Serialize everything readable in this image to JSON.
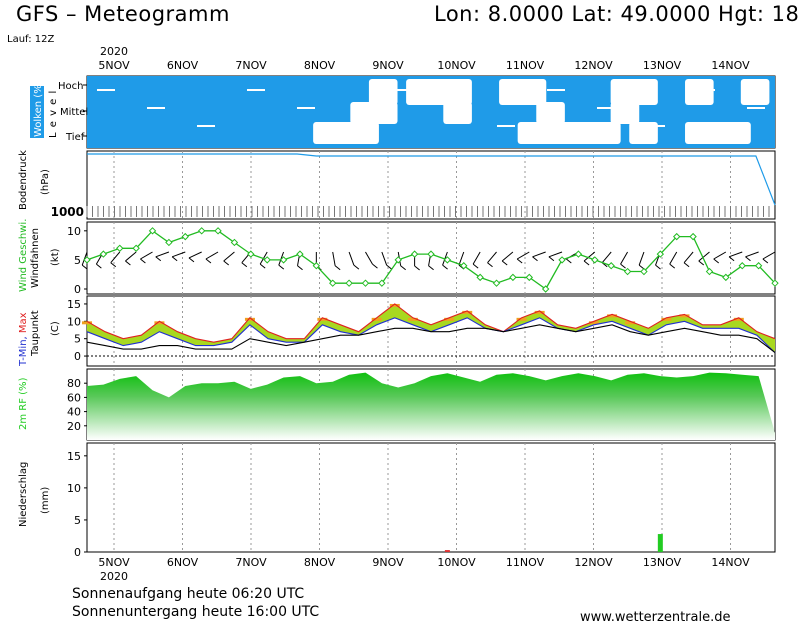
{
  "header": {
    "title": "GFS – Meteogramm",
    "lon_label": "Lon:",
    "lon": "8.0000",
    "lat_label": "Lat:",
    "lat": "49.0000",
    "hgt_label": "Hgt:",
    "hgt": "18"
  },
  "run": "Lauf: 12Z",
  "year": "2020",
  "days": [
    "5NOV",
    "6NOV",
    "7NOV",
    "8NOV",
    "9NOV",
    "10NOV",
    "11NOV",
    "12NOV",
    "13NOV",
    "14NOV"
  ],
  "footer": {
    "sunrise": "Sonnenaufgang heute 06:20 UTC",
    "sunset": "Sonnenuntergang heute 16:00 UTC",
    "source": "www.wetterzentrale.de"
  },
  "colors": {
    "sky": "#1f9be8",
    "cloud": "#ffffff",
    "rh": "#22cc22",
    "precip": "#22cc22",
    "tmax": "#e02020",
    "tmin": "#2030d0",
    "dew": "#000000",
    "wind": "#22bb22",
    "pressure": "#1f9be8",
    "warm": "#f0a020"
  },
  "chart_data": [
    {
      "type": "heatmap",
      "panel": "clouds",
      "ylabel": "Wolken (%)",
      "ylabel2": "L e v e l",
      "levels": [
        "Hoch",
        "Mittel",
        "Tief"
      ],
      "x_start": "2020-11-04 18Z",
      "x_step_hours": 6,
      "hoch": [
        0,
        0,
        0,
        0,
        0,
        0,
        0,
        0,
        0,
        0,
        0,
        0,
        0,
        0,
        0,
        1,
        0,
        1,
        1,
        1,
        0,
        0,
        1,
        1,
        0,
        0,
        0,
        0,
        1,
        1,
        0,
        0,
        1,
        0,
        0,
        1,
        0
      ],
      "mittel": [
        0,
        0,
        0,
        0,
        0,
        0,
        0,
        0,
        0,
        0,
        0,
        0,
        0,
        0,
        1,
        1,
        0,
        0,
        0,
        1,
        0,
        0,
        0,
        0,
        1,
        0,
        0,
        0,
        1,
        0,
        0,
        0,
        0,
        0,
        0,
        0,
        0
      ],
      "tief": [
        0,
        0,
        0,
        0,
        0,
        0,
        0,
        0,
        0,
        0,
        0,
        0,
        1,
        1,
        1,
        0,
        0,
        0,
        0,
        0,
        0,
        0,
        0,
        1,
        1,
        1,
        1,
        1,
        0,
        1,
        0,
        0,
        1,
        1,
        1,
        0,
        0
      ]
    },
    {
      "type": "line",
      "panel": "pressure",
      "ylabel": "Bodendruck",
      "unit": "(hPa)",
      "tick_labels": [
        "1000"
      ],
      "x_start": "2020-11-04 18Z",
      "x_step_hours": 6,
      "series": [
        {
          "values": [
            1025,
            1025,
            1025,
            1025,
            1025,
            1025,
            1025,
            1025,
            1025,
            1025,
            1025,
            1025,
            1024,
            1024,
            1024,
            1024,
            1024,
            1024,
            1024,
            1024,
            1024,
            1024,
            1024,
            1024,
            1024,
            1024,
            1024,
            1024,
            1024,
            1024,
            1024,
            1024,
            1024,
            1024,
            1024,
            1024,
            1000
          ]
        }
      ]
    },
    {
      "type": "line",
      "panel": "wind",
      "ylabel": "Wind Geschwi.",
      "ylabel2": "Windfahnen",
      "unit": "(kt)",
      "yticks": [
        0,
        5,
        10
      ],
      "ylim": [
        0,
        11
      ],
      "x_start": "2020-11-04 18Z",
      "x_step_hours": 6,
      "series": [
        {
          "name": "Wind Geschwi.",
          "values": [
            5,
            6,
            7,
            7,
            10,
            8,
            9,
            10,
            10,
            8,
            6,
            5,
            5,
            6,
            4,
            1,
            1,
            1,
            1,
            5,
            6,
            6,
            5,
            4,
            2,
            1,
            2,
            2,
            0,
            5,
            6,
            5,
            4,
            3,
            3,
            6,
            9,
            9,
            3,
            2,
            4,
            4,
            1
          ]
        }
      ],
      "directions_deg": [
        200,
        210,
        220,
        230,
        240,
        250,
        250,
        245,
        240,
        230,
        220,
        210,
        200,
        190,
        180,
        170,
        160,
        150,
        160,
        170,
        180,
        190,
        200,
        200,
        210,
        220,
        230,
        240,
        250,
        250,
        240,
        230,
        220,
        210,
        200,
        200,
        210,
        220,
        230,
        240,
        250,
        250,
        240
      ]
    },
    {
      "type": "line",
      "panel": "temperature",
      "ylabel": "T-Min, Max",
      "ylabel2": "Taupunkt",
      "unit": "(C)",
      "yticks": [
        0,
        5,
        10,
        15
      ],
      "ylim": [
        -2,
        17
      ],
      "x_start": "2020-11-04 18Z",
      "x_step_hours": 6,
      "series": [
        {
          "name": "T-Max",
          "values": [
            10,
            7,
            5,
            6,
            10,
            7,
            5,
            4,
            5,
            11,
            7,
            5,
            5,
            11,
            9,
            7,
            11,
            15,
            11,
            9,
            11,
            13,
            9,
            7,
            11,
            13,
            9,
            8,
            10,
            12,
            10,
            8,
            11,
            12,
            9,
            9,
            11,
            7,
            5
          ]
        },
        {
          "name": "T-Min",
          "values": [
            7,
            5,
            3,
            4,
            7,
            5,
            3,
            3,
            4,
            9,
            5,
            4,
            4,
            9,
            7,
            6,
            9,
            11,
            9,
            7,
            9,
            11,
            8,
            7,
            9,
            11,
            8,
            7,
            9,
            10,
            8,
            6,
            9,
            10,
            8,
            8,
            8,
            6,
            1
          ]
        },
        {
          "name": "Taupunkt",
          "values": [
            4,
            3,
            2,
            2,
            3,
            3,
            2,
            2,
            2,
            5,
            4,
            3,
            4,
            5,
            6,
            6,
            7,
            8,
            8,
            7,
            7,
            8,
            8,
            7,
            8,
            9,
            8,
            7,
            8,
            9,
            7,
            6,
            7,
            8,
            7,
            6,
            6,
            5,
            1
          ]
        }
      ]
    },
    {
      "type": "area",
      "panel": "humidity",
      "ylabel": "2m RF (%)",
      "yticks": [
        20,
        40,
        60,
        80
      ],
      "ylim": [
        0,
        100
      ],
      "x_start": "2020-11-04 18Z",
      "x_step_hours": 6,
      "values": [
        76,
        78,
        86,
        90,
        70,
        60,
        76,
        80,
        80,
        82,
        72,
        78,
        88,
        90,
        80,
        82,
        92,
        95,
        80,
        74,
        80,
        90,
        94,
        88,
        82,
        92,
        94,
        90,
        84,
        90,
        94,
        90,
        84,
        92,
        94,
        90,
        88,
        90,
        95,
        94,
        92,
        90,
        10
      ]
    },
    {
      "type": "bar",
      "panel": "precipitation",
      "ylabel": "Niederschlag",
      "unit": "(mm)",
      "yticks": [
        0,
        5,
        10,
        15
      ],
      "ylim": [
        0,
        17
      ],
      "x_start": "2020-11-04 18Z",
      "x_step_hours": 6,
      "values": [
        0,
        0,
        0,
        0,
        0,
        0,
        0,
        0,
        0,
        0,
        0,
        0,
        0,
        0,
        0,
        0,
        0,
        0,
        0,
        0,
        0,
        0,
        0.3,
        0,
        0,
        0,
        0,
        0,
        0,
        0,
        0,
        0,
        0,
        0,
        0,
        2.8,
        0,
        0,
        0,
        0,
        0,
        0,
        0
      ]
    }
  ]
}
